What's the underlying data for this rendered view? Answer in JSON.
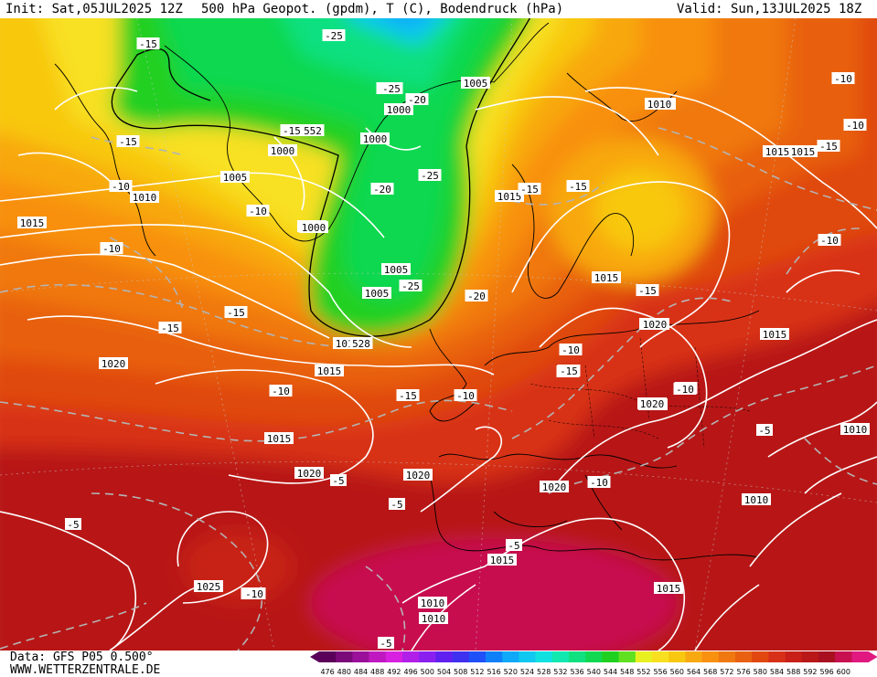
{
  "header": {
    "init": "Init: Sat,05JUL2025 12Z",
    "title": "500 hPa Geopot. (gpdm), T (C), Bodendruck (hPa)",
    "valid": "Valid: Sun,13JUL2025 18Z"
  },
  "footer": {
    "data_source": "Data: GFS P05 0.500°",
    "website": "WWW.WETTERZENTRALE.DE"
  },
  "colorbar": {
    "ticks": [
      "476",
      "480",
      "484",
      "488",
      "492",
      "496",
      "500",
      "504",
      "508",
      "512",
      "516",
      "520",
      "524",
      "528",
      "532",
      "536",
      "540",
      "544",
      "548",
      "552",
      "556",
      "560",
      "564",
      "568",
      "572",
      "576",
      "580",
      "584",
      "588",
      "592",
      "596",
      "600"
    ],
    "colors": [
      "#5a005a",
      "#7a0a7a",
      "#9a109a",
      "#c018c0",
      "#d820e0",
      "#b020e8",
      "#8a20f0",
      "#6020f0",
      "#4030f0",
      "#2050f8",
      "#1080f8",
      "#10a8f8",
      "#10c8f0",
      "#10e0e0",
      "#10e8b0",
      "#10e080",
      "#10d850",
      "#20d020",
      "#60e020",
      "#e8f020",
      "#f8e020",
      "#f8c810",
      "#f8a810",
      "#f89010",
      "#f07810",
      "#e86010",
      "#e04810",
      "#d83018",
      "#c82018",
      "#b81818",
      "#a81020",
      "#c81050",
      "#e01880"
    ]
  },
  "isobar_labels": [
    "1015",
    "1015",
    "1010",
    "1005",
    "1010",
    "1015",
    "1010",
    "1005",
    "1000",
    "1000",
    "1000",
    "1000",
    "1005",
    "1005",
    "1015",
    "1015",
    "1015",
    "1015",
    "1010",
    "1010",
    "1020",
    "1015",
    "1015",
    "1020",
    "1020",
    "1010",
    "1015",
    "1020",
    "1020",
    "1020",
    "1015",
    "1025",
    "1010",
    "1010",
    "1015",
    "1010",
    "1000",
    "1010"
  ],
  "temperature_labels": [
    "-15",
    "-15",
    "-10",
    "-10",
    "-10",
    "-15",
    "-15",
    "-25",
    "-25",
    "-25",
    "-20",
    "-15",
    "-20",
    "-25",
    "-25",
    "-20",
    "-15",
    "-15",
    "-15",
    "-10",
    "-10",
    "-10",
    "-10",
    "-15",
    "-15",
    "-10",
    "-10",
    "-10",
    "-15",
    "-10",
    "-5",
    "-5",
    "-5",
    "-10",
    "-5",
    "-5",
    "-10",
    "-10",
    "-10",
    "-5"
  ],
  "height_labels": [
    "552",
    "528"
  ],
  "colors": {
    "isobar": "#ffffff",
    "isotherm": "#b4b4b4",
    "coastline": "#000000"
  }
}
